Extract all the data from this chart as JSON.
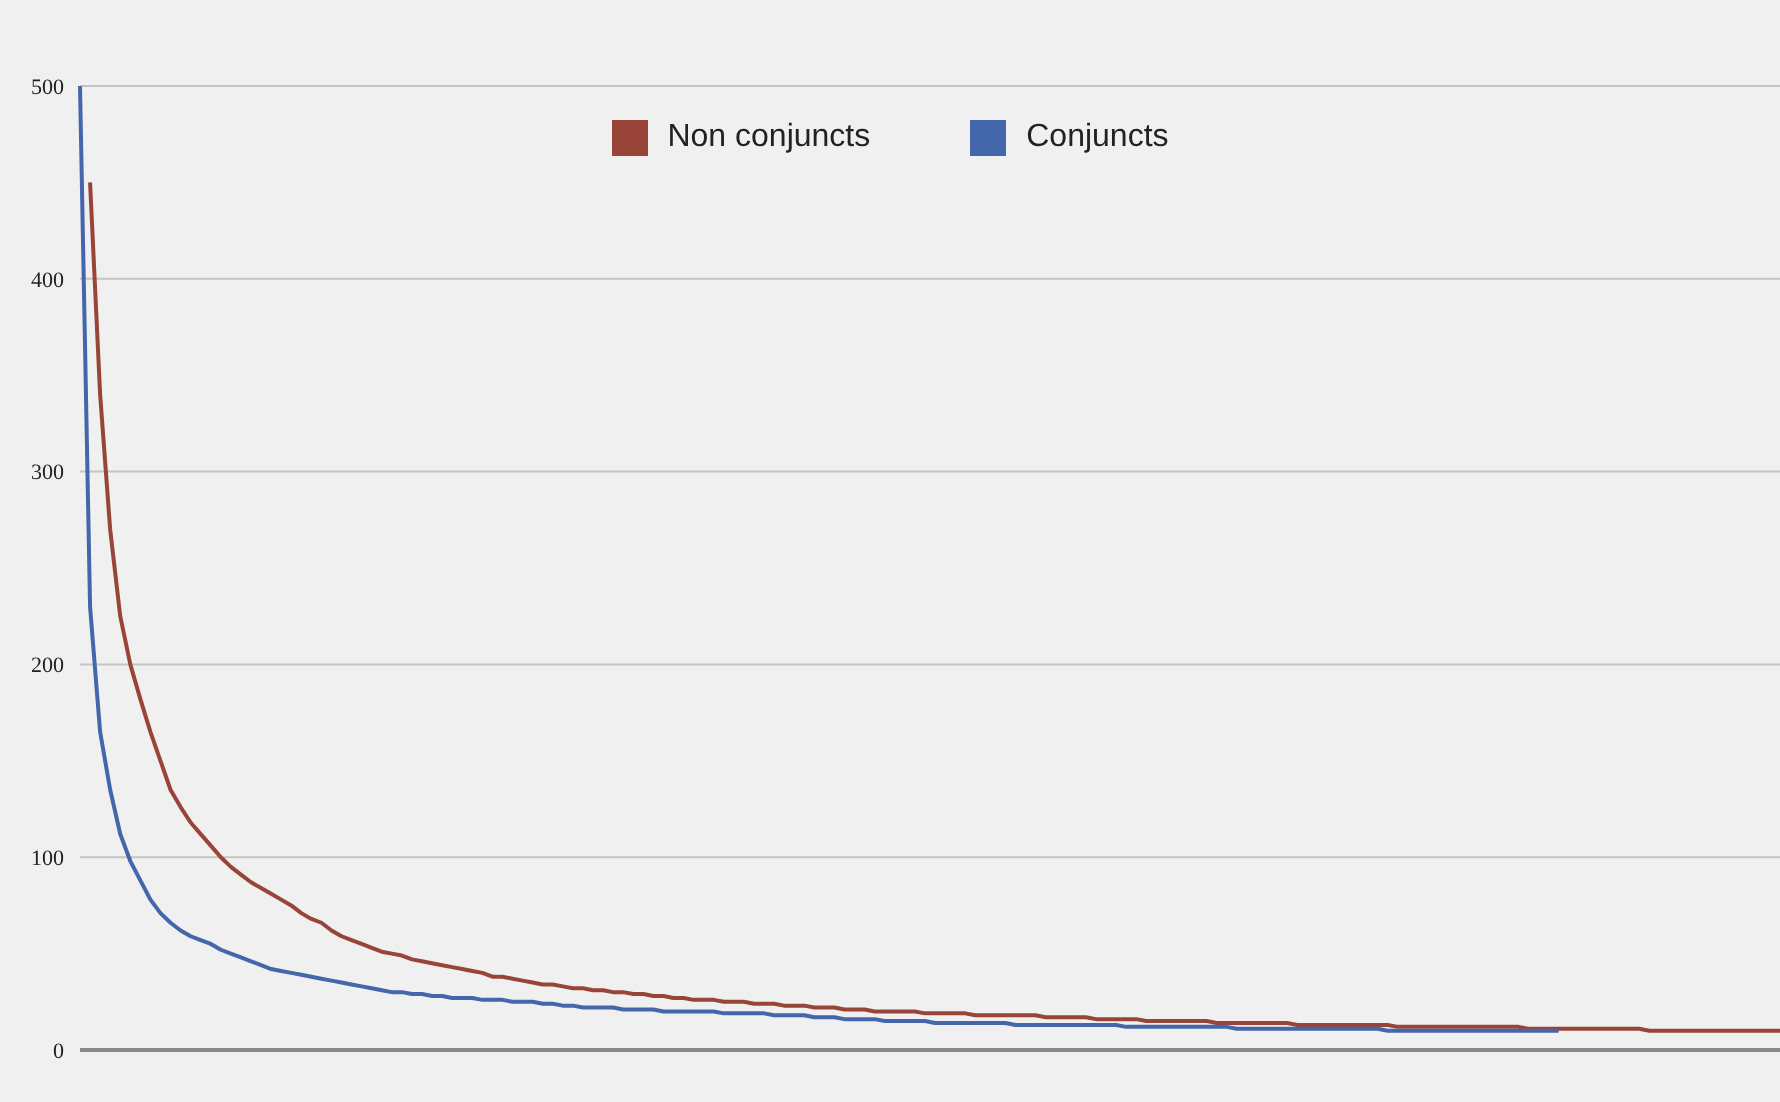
{
  "chart_data": {
    "type": "line",
    "categories": [
      null,
      null,
      null,
      null,
      null,
      null,
      null,
      null,
      null,
      null,
      null,
      null,
      null,
      null,
      null,
      null,
      null,
      null,
      null,
      null,
      null,
      null,
      null,
      null,
      null,
      null,
      null,
      null,
      null,
      null,
      null,
      null,
      null,
      null,
      null,
      null,
      null,
      null,
      null,
      null,
      null,
      null,
      null,
      null,
      null,
      null,
      null,
      null,
      null,
      null,
      null,
      null,
      null,
      null,
      null,
      null,
      null,
      null,
      null,
      null,
      null,
      null,
      null,
      null,
      null,
      null,
      null,
      null,
      null,
      null,
      null,
      null,
      null,
      null,
      null,
      null,
      null,
      null,
      null,
      null,
      null,
      null,
      null,
      null,
      null,
      null,
      null,
      null,
      null,
      null,
      null,
      null,
      null,
      null,
      null,
      null,
      null,
      null,
      null,
      null,
      null,
      null,
      null,
      null,
      null,
      null,
      null,
      null,
      null,
      null,
      null,
      null,
      null,
      null,
      null,
      null,
      null,
      null,
      null,
      null,
      null,
      null,
      null,
      null,
      null,
      null,
      null,
      null,
      null,
      null,
      null,
      null,
      null,
      null,
      null,
      null,
      null,
      null,
      null,
      null,
      null,
      null,
      null,
      null,
      null,
      null,
      null,
      null,
      null,
      null,
      null,
      null,
      null,
      null,
      null,
      null,
      null,
      null,
      null,
      null,
      null,
      null,
      null,
      null,
      null,
      null,
      null,
      null,
      null,
      null
    ],
    "ylim": [
      0,
      500
    ],
    "yticks": [
      0,
      100,
      200,
      300,
      400,
      500
    ],
    "grid": "y",
    "legend": "top",
    "marker": "none",
    "line_style": "solid",
    "series": [
      {
        "name": "Non conjuncts",
        "color": "#994439",
        "values": [
          null,
          450,
          340,
          270,
          225,
          200,
          182,
          165,
          150,
          135,
          126,
          118,
          112,
          106,
          100,
          95,
          91,
          87,
          84,
          81,
          78,
          75,
          71,
          68,
          66,
          62,
          59,
          57,
          55,
          53,
          51,
          50,
          49,
          47,
          46,
          45,
          44,
          43,
          42,
          41,
          40,
          38,
          38,
          37,
          36,
          35,
          34,
          34,
          33,
          32,
          32,
          31,
          31,
          30,
          30,
          29,
          29,
          28,
          28,
          27,
          27,
          26,
          26,
          26,
          25,
          25,
          25,
          24,
          24,
          24,
          23,
          23,
          23,
          22,
          22,
          22,
          21,
          21,
          21,
          20,
          20,
          20,
          20,
          20,
          19,
          19,
          19,
          19,
          19,
          18,
          18,
          18,
          18,
          18,
          18,
          18,
          17,
          17,
          17,
          17,
          17,
          16,
          16,
          16,
          16,
          16,
          15,
          15,
          15,
          15,
          15,
          15,
          15,
          14,
          14,
          14,
          14,
          14,
          14,
          14,
          14,
          13,
          13,
          13,
          13,
          13,
          13,
          13,
          13,
          13,
          13,
          12,
          12,
          12,
          12,
          12,
          12,
          12,
          12,
          12,
          12,
          12,
          12,
          12,
          11,
          11,
          11,
          11,
          11,
          11,
          11,
          11,
          11,
          11,
          11,
          11,
          10,
          10,
          10,
          10,
          10,
          10,
          10,
          10,
          10,
          10,
          10,
          10,
          10,
          10
        ]
      },
      {
        "name": "Conjuncts",
        "color": "#4466aa",
        "values": [
          500,
          230,
          165,
          135,
          112,
          98,
          88,
          78,
          71,
          66,
          62,
          59,
          57,
          55,
          52,
          50,
          48,
          46,
          44,
          42,
          41,
          40,
          39,
          38,
          37,
          36,
          35,
          34,
          33,
          32,
          31,
          30,
          30,
          29,
          29,
          28,
          28,
          27,
          27,
          27,
          26,
          26,
          26,
          25,
          25,
          25,
          24,
          24,
          23,
          23,
          22,
          22,
          22,
          22,
          21,
          21,
          21,
          21,
          20,
          20,
          20,
          20,
          20,
          20,
          19,
          19,
          19,
          19,
          19,
          18,
          18,
          18,
          18,
          17,
          17,
          17,
          16,
          16,
          16,
          16,
          15,
          15,
          15,
          15,
          15,
          14,
          14,
          14,
          14,
          14,
          14,
          14,
          14,
          13,
          13,
          13,
          13,
          13,
          13,
          13,
          13,
          13,
          13,
          13,
          12,
          12,
          12,
          12,
          12,
          12,
          12,
          12,
          12,
          12,
          12,
          11,
          11,
          11,
          11,
          11,
          11,
          11,
          11,
          11,
          11,
          11,
          11,
          11,
          11,
          11,
          10,
          10,
          10,
          10,
          10,
          10,
          10,
          10,
          10,
          10,
          10,
          10,
          10,
          10,
          10,
          10,
          10,
          10,
          null,
          null,
          null,
          null,
          null,
          null,
          null,
          null,
          null,
          null,
          null,
          null,
          null,
          null,
          null,
          null,
          null,
          null,
          null,
          null,
          null,
          null
        ]
      }
    ]
  }
}
